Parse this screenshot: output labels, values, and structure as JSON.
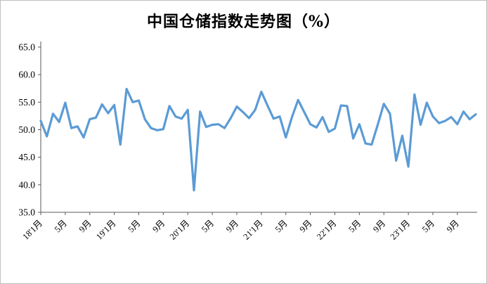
{
  "title": "中国仓储指数走势图（%）",
  "chart_data": {
    "type": "line",
    "title": "中国仓储指数走势图（%）",
    "series_name": "中国仓储指数",
    "unit": "%",
    "grid": false,
    "legend_position": "none",
    "ylim": [
      35,
      65
    ],
    "y_tick_labels": [
      "65.0",
      "60.0",
      "55.0",
      "50.0",
      "45.0",
      "40.0",
      "35.0"
    ],
    "x_tick_labels": [
      "18'1月",
      "5月",
      "9月",
      "19'1月",
      "5月",
      "9月",
      "20'1月",
      "5月",
      "9月",
      "21'1月",
      "5月",
      "9月",
      "22'1月",
      "5月",
      "9月",
      "23'1月",
      "5月",
      "9月"
    ],
    "x_tick_positions": [
      0,
      4,
      8,
      12,
      16,
      20,
      24,
      28,
      32,
      36,
      40,
      44,
      48,
      52,
      56,
      60,
      64,
      68
    ],
    "months": [
      "2018-01",
      "2018-02",
      "2018-03",
      "2018-04",
      "2018-05",
      "2018-06",
      "2018-07",
      "2018-08",
      "2018-09",
      "2018-10",
      "2018-11",
      "2018-12",
      "2019-01",
      "2019-02",
      "2019-03",
      "2019-04",
      "2019-05",
      "2019-06",
      "2019-07",
      "2019-08",
      "2019-09",
      "2019-10",
      "2019-11",
      "2019-12",
      "2020-01",
      "2020-02",
      "2020-03",
      "2020-04",
      "2020-05",
      "2020-06",
      "2020-07",
      "2020-08",
      "2020-09",
      "2020-10",
      "2020-11",
      "2020-12",
      "2021-01",
      "2021-02",
      "2021-03",
      "2021-04",
      "2021-05",
      "2021-06",
      "2021-07",
      "2021-08",
      "2021-09",
      "2021-10",
      "2021-11",
      "2021-12",
      "2022-01",
      "2022-02",
      "2022-03",
      "2022-04",
      "2022-05",
      "2022-06",
      "2022-07",
      "2022-08",
      "2022-09",
      "2022-10",
      "2022-11",
      "2022-12",
      "2023-01",
      "2023-02",
      "2023-03",
      "2023-04",
      "2023-05",
      "2023-06",
      "2023-07",
      "2023-08",
      "2023-09",
      "2023-10",
      "2023-11",
      "2023-12"
    ],
    "series": [
      {
        "name": "中国仓储指数",
        "values": [
          51.6,
          48.8,
          52.9,
          51.4,
          54.9,
          50.3,
          50.6,
          48.6,
          51.9,
          52.2,
          54.6,
          53.0,
          54.5,
          47.3,
          57.4,
          55.0,
          55.3,
          51.9,
          50.3,
          49.9,
          50.1,
          54.3,
          52.4,
          52.0,
          53.6,
          39.0,
          53.3,
          50.5,
          50.9,
          51.0,
          50.3,
          52.1,
          54.2,
          53.2,
          52.1,
          53.6,
          56.9,
          54.4,
          52.0,
          52.4,
          48.6,
          52.3,
          55.4,
          53.2,
          51.0,
          50.4,
          52.3,
          49.6,
          50.2,
          54.4,
          54.3,
          48.4,
          51.0,
          47.5,
          47.3,
          50.9,
          54.7,
          52.9,
          44.4,
          48.9,
          43.3,
          56.4,
          50.9,
          54.9,
          52.4,
          51.2,
          51.6,
          52.3,
          51.0,
          53.3,
          51.9,
          52.8
        ]
      }
    ],
    "line_color": "#5B9BD5",
    "axis_color": "#595959",
    "tick_color": "#595959"
  }
}
